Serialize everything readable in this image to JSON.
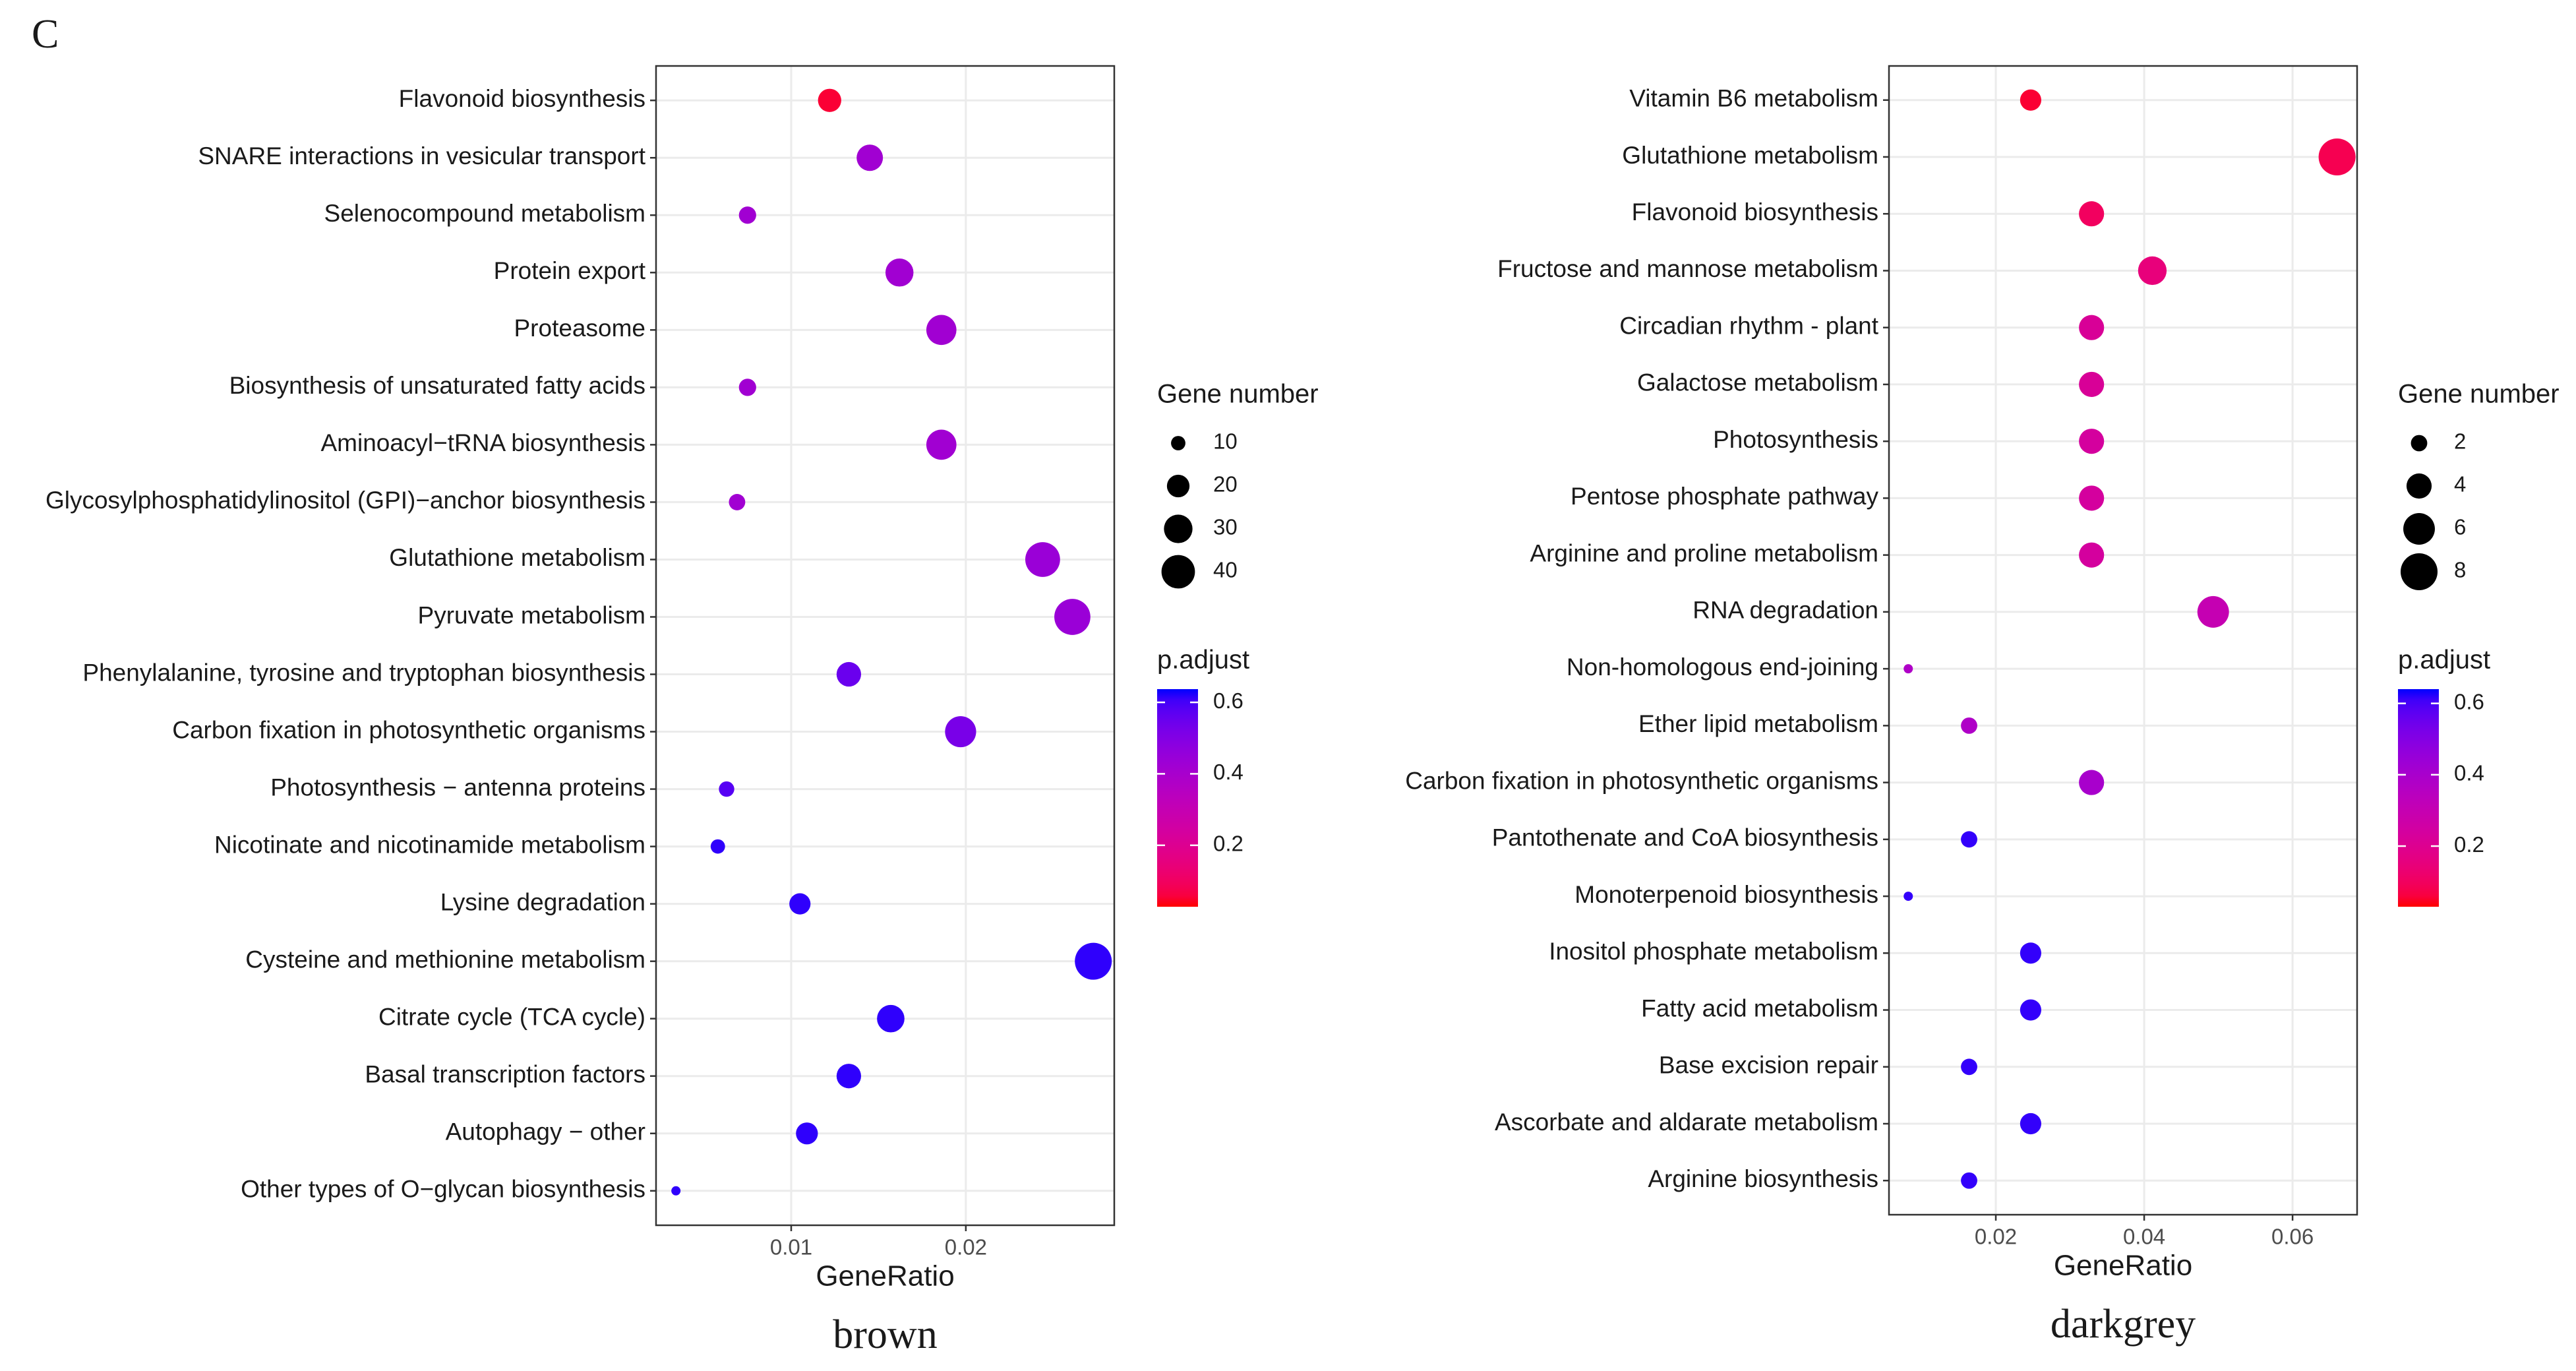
{
  "panel_label": "C",
  "chart_data": [
    {
      "type": "dot",
      "caption": "brown",
      "xlabel": "GeneRatio",
      "categories": [
        "Flavonoid biosynthesis",
        "SNARE interactions in vesicular transport",
        "Selenocompound metabolism",
        "Protein export",
        "Proteasome",
        "Biosynthesis of unsaturated fatty acids",
        "Aminoacyl−tRNA biosynthesis",
        "Glycosylphosphatidylinositol (GPI)−anchor biosynthesis",
        "Glutathione metabolism",
        "Pyruvate metabolism",
        "Phenylalanine, tyrosine and tryptophan biosynthesis",
        "Carbon fixation in photosynthetic organisms",
        "Photosynthesis − antenna proteins",
        "Nicotinate and nicotinamide metabolism",
        "Lysine degradation",
        "Cysteine and methionine metabolism",
        "Citrate cycle (TCA cycle)",
        "Basal transcription factors",
        "Autophagy − other",
        "Other types of O−glycan biosynthesis"
      ],
      "values": [
        0.0122,
        0.0145,
        0.0075,
        0.0162,
        0.0186,
        0.0075,
        0.0186,
        0.0069,
        0.0244,
        0.0261,
        0.0133,
        0.0197,
        0.0063,
        0.0058,
        0.0105,
        0.0273,
        0.0157,
        0.0133,
        0.0109,
        0.0034
      ],
      "sizes": [
        21,
        26,
        13,
        29,
        33,
        13,
        33,
        12,
        43,
        46,
        23,
        35,
        11,
        10,
        18,
        48,
        28,
        23,
        19,
        6
      ],
      "p_adjust": [
        0.05,
        0.42,
        0.42,
        0.42,
        0.42,
        0.42,
        0.42,
        0.42,
        0.44,
        0.44,
        0.55,
        0.52,
        0.58,
        0.62,
        0.62,
        0.62,
        0.62,
        0.62,
        0.62,
        0.62
      ],
      "xlim": [
        0.00226,
        0.0285
      ],
      "xticks": [
        0.01,
        0.02
      ],
      "grid": true,
      "size_legend": {
        "title": "Gene number",
        "ticks": [
          10,
          20,
          30,
          40
        ]
      },
      "color_legend": {
        "title": "p.adjust",
        "ticks": [
          0.2,
          0.4,
          0.6
        ],
        "lim": [
          0.028,
          0.637
        ],
        "colors": [
          "#ff0000",
          "#0000ff"
        ]
      }
    },
    {
      "type": "dot",
      "caption": "darkgrey",
      "xlabel": "GeneRatio",
      "categories": [
        "Vitamin B6 metabolism",
        "Glutathione metabolism",
        "Flavonoid biosynthesis",
        "Fructose and mannose metabolism",
        "Circadian rhythm - plant",
        "Galactose metabolism",
        "Photosynthesis",
        "Pentose phosphate pathway",
        "Arginine and proline metabolism",
        "RNA degradation",
        "Non-homologous end-joining",
        "Ether lipid metabolism",
        "Carbon fixation in photosynthetic organisms",
        "Pantothenate and CoA biosynthesis",
        "Monoterpenoid biosynthesis",
        "Inositol phosphate metabolism",
        "Fatty acid metabolism",
        "Base excision repair",
        "Ascorbate and aldarate metabolism",
        "Arginine biosynthesis"
      ],
      "values": [
        0.0247,
        0.066,
        0.0329,
        0.0411,
        0.0329,
        0.0329,
        0.0329,
        0.0329,
        0.0329,
        0.0493,
        0.0082,
        0.0164,
        0.0329,
        0.0164,
        0.0082,
        0.0247,
        0.0247,
        0.0164,
        0.0247,
        0.0164
      ],
      "sizes": [
        3,
        8,
        4,
        5,
        4,
        4,
        4,
        4,
        4,
        6,
        1,
        2,
        4,
        2,
        1,
        3,
        3,
        2,
        3,
        2
      ],
      "p_adjust": [
        0.05,
        0.08,
        0.1,
        0.15,
        0.22,
        0.22,
        0.24,
        0.24,
        0.24,
        0.3,
        0.38,
        0.38,
        0.4,
        0.62,
        0.62,
        0.62,
        0.62,
        0.62,
        0.62,
        0.62
      ],
      "xlim": [
        0.0056,
        0.0687
      ],
      "xticks": [
        0.02,
        0.04,
        0.06
      ],
      "grid": true,
      "size_legend": {
        "title": "Gene number",
        "ticks": [
          2,
          4,
          6,
          8
        ]
      },
      "color_legend": {
        "title": "p.adjust",
        "ticks": [
          0.2,
          0.4,
          0.6
        ],
        "lim": [
          0.03,
          0.64
        ],
        "colors": [
          "#ff0000",
          "#0000ff"
        ]
      }
    }
  ]
}
